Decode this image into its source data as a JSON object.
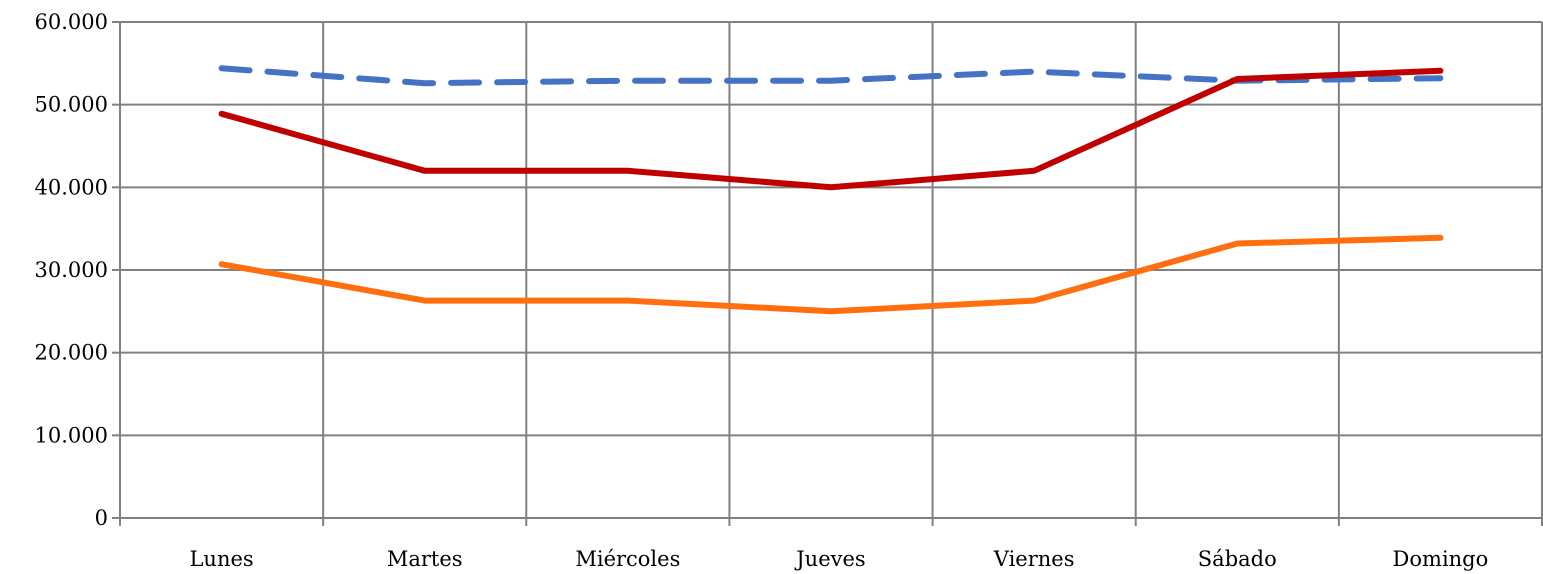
{
  "chart_data": {
    "type": "line",
    "title": "",
    "xlabel": "",
    "ylabel": "",
    "categories": [
      "Lunes",
      "Martes",
      "Miércoles",
      "Jueves",
      "Viernes",
      "Sábado",
      "Domingo"
    ],
    "y_ticks": [
      "0",
      "10.000",
      "20.000",
      "30.000",
      "40.000",
      "50.000",
      "60.000"
    ],
    "y_tick_values": [
      0,
      10000,
      20000,
      30000,
      40000,
      50000,
      60000
    ],
    "ylim": [
      0,
      60000
    ],
    "grid": true,
    "legend": "none",
    "series": [
      {
        "color": "#4472c4",
        "style": "dashed",
        "values": [
          54400,
          52600,
          52900,
          52900,
          54000,
          52900,
          53200
        ]
      },
      {
        "color": "#c00000",
        "style": "solid",
        "values": [
          48900,
          42000,
          42000,
          40000,
          42000,
          53100,
          54100
        ]
      },
      {
        "color": "#ff6f0f",
        "style": "solid",
        "values": [
          30700,
          26300,
          26300,
          25000,
          26300,
          33200,
          33900
        ]
      }
    ]
  }
}
